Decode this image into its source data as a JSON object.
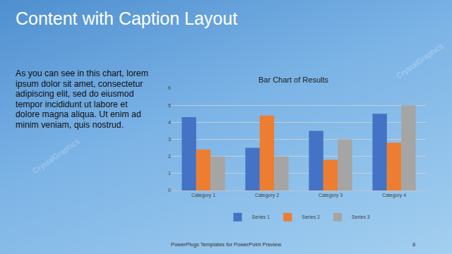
{
  "slide": {
    "title": "Content with Caption Layout",
    "caption": "As you can see in this chart, lorem ipsum dolor sit amet, consectetur adipiscing elit, sed do eiusmod tempor incididunt ut labore et dolore magna aliqua. Ut enim ad minim veniam, quis nostrud.",
    "footer": "PowerPlugs Templates for PowerPoint  Preview",
    "page": "8",
    "watermark": "CrystalGraphics"
  },
  "chart_data": {
    "type": "bar",
    "title": "Bar Chart of Results",
    "categories": [
      "Category 1",
      "Category 2",
      "Category 3",
      "Category 4"
    ],
    "series": [
      {
        "name": "Series 1",
        "color": "#4472c4",
        "values": [
          4.3,
          2.5,
          3.5,
          4.5
        ]
      },
      {
        "name": "Series 2",
        "color": "#ed7d31",
        "values": [
          2.4,
          4.4,
          1.8,
          2.8
        ]
      },
      {
        "name": "Series 3",
        "color": "#a5a5a5",
        "values": [
          2,
          2,
          3,
          5
        ]
      }
    ],
    "ylim": [
      0,
      6
    ],
    "yticks": [
      0,
      1,
      2,
      3,
      4,
      5,
      6
    ],
    "grid": true,
    "legend": "bottom"
  }
}
